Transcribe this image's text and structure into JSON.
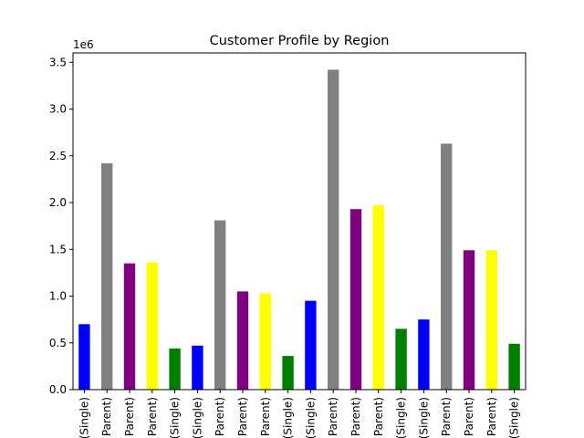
{
  "chart_data": {
    "type": "bar",
    "title": "Customer Profile by Region",
    "xlabel": "",
    "ylabel": "",
    "y_scale_label": "1e6",
    "ylim": [
      0,
      3.6
    ],
    "yticks": [
      0.0,
      0.5,
      1.0,
      1.5,
      2.0,
      2.5,
      3.0,
      3.5
    ],
    "ytick_labels": [
      "0.0",
      "0.5",
      "1.0",
      "1.5",
      "2.0",
      "2.5",
      "3.0",
      "3.5"
    ],
    "grid": false,
    "legend": "none",
    "categories": [
      "(Single)",
      "Parent)",
      "Parent)",
      "Parent)",
      "(Single)",
      "(Single)",
      "Parent)",
      "Parent)",
      "Parent)",
      "(Single)",
      "(Single)",
      "Parent)",
      "Parent)",
      "Parent)",
      "(Single)",
      "(Single)",
      "Parent)",
      "Parent)",
      "Parent)",
      "(Single)"
    ],
    "values": [
      700000,
      2420000,
      1350000,
      1360000,
      440000,
      470000,
      1810000,
      1050000,
      1030000,
      360000,
      950000,
      3420000,
      1930000,
      1970000,
      650000,
      750000,
      2630000,
      1490000,
      1490000,
      490000
    ],
    "bar_colors": [
      "#0000ff",
      "#808080",
      "#800080",
      "#ffff00",
      "#008000",
      "#0000ff",
      "#808080",
      "#800080",
      "#ffff00",
      "#008000",
      "#0000ff",
      "#808080",
      "#800080",
      "#ffff00",
      "#008000",
      "#0000ff",
      "#808080",
      "#800080",
      "#ffff00",
      "#008000"
    ]
  }
}
